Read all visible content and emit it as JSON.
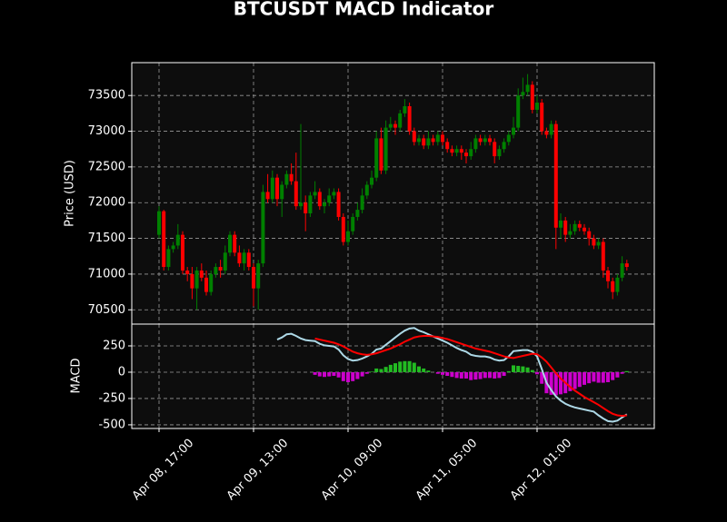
{
  "chart_data": [
    {
      "type": "candlestick",
      "title": "BTCUSDT MACD Indicator",
      "ylabel": "Price (USD)",
      "x": [
        "Apr 08, 17:00",
        "Apr 08, 18:00",
        "Apr 08, 19:00",
        "Apr 08, 20:00",
        "Apr 08, 21:00",
        "Apr 08, 22:00",
        "Apr 08, 23:00",
        "Apr 09, 00:00",
        "Apr 09, 01:00",
        "Apr 09, 02:00",
        "Apr 09, 03:00",
        "Apr 09, 04:00",
        "Apr 09, 05:00",
        "Apr 09, 06:00",
        "Apr 09, 07:00",
        "Apr 09, 08:00",
        "Apr 09, 09:00",
        "Apr 09, 10:00",
        "Apr 09, 11:00",
        "Apr 09, 12:00",
        "Apr 09, 13:00",
        "Apr 09, 14:00",
        "Apr 09, 15:00",
        "Apr 09, 16:00",
        "Apr 09, 17:00",
        "Apr 09, 18:00",
        "Apr 09, 19:00",
        "Apr 09, 20:00",
        "Apr 09, 21:00",
        "Apr 09, 22:00",
        "Apr 09, 23:00",
        "Apr 10, 00:00",
        "Apr 10, 01:00",
        "Apr 10, 02:00",
        "Apr 10, 03:00",
        "Apr 10, 04:00",
        "Apr 10, 05:00",
        "Apr 10, 06:00",
        "Apr 10, 07:00",
        "Apr 10, 08:00",
        "Apr 10, 09:00",
        "Apr 10, 10:00",
        "Apr 10, 11:00",
        "Apr 10, 12:00",
        "Apr 10, 13:00",
        "Apr 10, 14:00",
        "Apr 10, 15:00",
        "Apr 10, 16:00",
        "Apr 10, 17:00",
        "Apr 10, 18:00",
        "Apr 10, 19:00",
        "Apr 10, 20:00",
        "Apr 10, 21:00",
        "Apr 10, 22:00",
        "Apr 10, 23:00",
        "Apr 11, 00:00",
        "Apr 11, 01:00",
        "Apr 11, 02:00",
        "Apr 11, 03:00",
        "Apr 11, 04:00",
        "Apr 11, 05:00",
        "Apr 11, 06:00",
        "Apr 11, 07:00",
        "Apr 11, 08:00",
        "Apr 11, 09:00",
        "Apr 11, 10:00",
        "Apr 11, 11:00",
        "Apr 11, 12:00",
        "Apr 11, 13:00",
        "Apr 11, 14:00",
        "Apr 11, 15:00",
        "Apr 11, 16:00",
        "Apr 11, 17:00",
        "Apr 11, 18:00",
        "Apr 11, 19:00",
        "Apr 11, 20:00",
        "Apr 11, 21:00",
        "Apr 11, 22:00",
        "Apr 11, 23:00",
        "Apr 12, 00:00",
        "Apr 12, 01:00",
        "Apr 12, 02:00",
        "Apr 12, 03:00",
        "Apr 12, 04:00",
        "Apr 12, 05:00",
        "Apr 12, 06:00",
        "Apr 12, 07:00",
        "Apr 12, 08:00",
        "Apr 12, 09:00",
        "Apr 12, 10:00",
        "Apr 12, 11:00",
        "Apr 12, 12:00",
        "Apr 12, 13:00",
        "Apr 12, 14:00",
        "Apr 12, 15:00",
        "Apr 12, 16:00",
        "Apr 12, 17:00",
        "Apr 12, 18:00",
        "Apr 12, 19:00",
        "Apr 12, 20:00"
      ],
      "open": [
        71550,
        71880,
        71100,
        71350,
        71400,
        71550,
        71050,
        71000,
        70800,
        71050,
        70950,
        70750,
        71000,
        71100,
        71050,
        71300,
        71550,
        71300,
        71150,
        71300,
        71100,
        70800,
        71150,
        72150,
        72050,
        72350,
        72050,
        72250,
        72400,
        72300,
        71950,
        72000,
        71850,
        72100,
        72150,
        71950,
        72000,
        72100,
        72150,
        71800,
        71450,
        71600,
        71800,
        71900,
        72100,
        72250,
        72350,
        72900,
        72450,
        73050,
        73100,
        73050,
        73250,
        73350,
        73000,
        72850,
        72900,
        72800,
        72900,
        72850,
        72950,
        72850,
        72750,
        72700,
        72750,
        72700,
        72650,
        72750,
        72900,
        72850,
        72900,
        72850,
        72650,
        72750,
        72850,
        72950,
        73050,
        73500,
        73550,
        73650,
        73300,
        73400,
        73000,
        72950,
        73100,
        71650,
        71750,
        71550,
        71600,
        71700,
        71650,
        71600,
        71500,
        71400,
        71450,
        71050,
        70900,
        70750,
        70950,
        71150
      ],
      "high": [
        71950,
        71900,
        71400,
        71450,
        71700,
        71600,
        71100,
        71100,
        71100,
        71150,
        71050,
        71050,
        71150,
        71200,
        71400,
        71600,
        71600,
        71400,
        71350,
        71350,
        71150,
        71200,
        72250,
        72400,
        72450,
        72400,
        72300,
        72450,
        72550,
        72700,
        73100,
        72100,
        72150,
        72300,
        72200,
        72050,
        72200,
        72200,
        72200,
        71850,
        71750,
        71850,
        72000,
        72200,
        72300,
        72450,
        73000,
        73050,
        73150,
        73200,
        73150,
        73300,
        73450,
        73400,
        73050,
        72950,
        72950,
        73000,
        72950,
        73000,
        73000,
        72900,
        72800,
        72800,
        72800,
        72750,
        72850,
        72950,
        72950,
        72950,
        72950,
        72900,
        72800,
        72900,
        73000,
        73200,
        73600,
        73750,
        73800,
        73700,
        73500,
        73450,
        73050,
        73150,
        73150,
        71850,
        71800,
        71700,
        71750,
        71750,
        71700,
        71650,
        71550,
        71500,
        71500,
        71100,
        70950,
        71000,
        71250,
        71200
      ],
      "low": [
        71500,
        71050,
        71050,
        71300,
        71350,
        71000,
        70900,
        70650,
        70500,
        70900,
        70700,
        70700,
        70950,
        70950,
        71000,
        71250,
        71250,
        71100,
        71050,
        71050,
        70550,
        70500,
        71100,
        72000,
        72000,
        71950,
        71800,
        72200,
        72250,
        71900,
        71900,
        71600,
        71800,
        72050,
        71900,
        71850,
        71950,
        72050,
        71750,
        71400,
        71400,
        71550,
        71750,
        71850,
        72050,
        72200,
        72300,
        72400,
        72400,
        73000,
        72950,
        73000,
        73200,
        72950,
        72800,
        72800,
        72750,
        72750,
        72800,
        72800,
        72800,
        72700,
        72650,
        72650,
        72600,
        72550,
        72600,
        72700,
        72800,
        72800,
        72800,
        72550,
        72600,
        72700,
        72800,
        72900,
        73000,
        73450,
        73500,
        73250,
        73250,
        72950,
        72900,
        72900,
        71350,
        71500,
        71450,
        71500,
        71550,
        71600,
        71550,
        71400,
        71350,
        71350,
        70950,
        70800,
        70650,
        70700,
        70900,
        71050
      ],
      "close": [
        71880,
        71100,
        71350,
        71400,
        71550,
        71050,
        71000,
        70800,
        71050,
        70950,
        70750,
        71000,
        71100,
        71050,
        71300,
        71550,
        71300,
        71150,
        71300,
        71100,
        70800,
        71150,
        72150,
        72050,
        72350,
        72050,
        72250,
        72400,
        72300,
        71950,
        72000,
        71850,
        72100,
        72150,
        71950,
        72000,
        72100,
        72150,
        71800,
        71450,
        71600,
        71800,
        71900,
        72100,
        72250,
        72350,
        72900,
        72450,
        73050,
        73100,
        73050,
        73250,
        73350,
        73000,
        72850,
        72900,
        72800,
        72900,
        72850,
        72950,
        72850,
        72750,
        72700,
        72750,
        72700,
        72650,
        72750,
        72900,
        72850,
        72900,
        72850,
        72650,
        72750,
        72850,
        72950,
        73050,
        73500,
        73550,
        73650,
        73300,
        73400,
        73000,
        72950,
        73100,
        71650,
        71750,
        71550,
        71600,
        71700,
        71650,
        71600,
        71500,
        71400,
        71450,
        71050,
        70900,
        70750,
        70950,
        71150,
        71100
      ],
      "up_color": "#008000",
      "down_color": "#ff0000",
      "ylim": [
        70300,
        73960
      ],
      "yticks": [
        70500,
        71000,
        71500,
        72000,
        72500,
        73000,
        73500
      ],
      "xticks": [
        "Apr 08, 17:00",
        "Apr 09, 13:00",
        "Apr 10, 09:00",
        "Apr 11, 05:00",
        "Apr 12, 01:00"
      ],
      "grid": true
    },
    {
      "type": "macd",
      "ylabel": "MACD",
      "series": [
        {
          "color": "#add8e6",
          "values": [
            null,
            null,
            null,
            null,
            null,
            null,
            null,
            null,
            null,
            null,
            null,
            null,
            null,
            null,
            null,
            null,
            null,
            null,
            null,
            null,
            null,
            null,
            null,
            null,
            null,
            310,
            330,
            360,
            365,
            345,
            320,
            305,
            300,
            295,
            270,
            255,
            250,
            245,
            215,
            160,
            125,
            110,
            115,
            130,
            150,
            175,
            215,
            225,
            260,
            295,
            330,
            365,
            395,
            415,
            420,
            395,
            380,
            360,
            340,
            320,
            300,
            280,
            255,
            230,
            210,
            195,
            165,
            155,
            150,
            150,
            140,
            120,
            110,
            115,
            150,
            200,
            205,
            210,
            210,
            195,
            150,
            30,
            -100,
            -170,
            -230,
            -270,
            -300,
            -320,
            -335,
            -345,
            -355,
            -365,
            -375,
            -410,
            -440,
            -465,
            -470,
            -460,
            -430,
            -400
          ]
        },
        {
          "color": "#ff0000",
          "values": [
            null,
            null,
            null,
            null,
            null,
            null,
            null,
            null,
            null,
            null,
            null,
            null,
            null,
            null,
            null,
            null,
            null,
            null,
            null,
            null,
            null,
            null,
            null,
            null,
            null,
            null,
            null,
            null,
            null,
            null,
            null,
            null,
            null,
            320,
            310,
            300,
            290,
            280,
            265,
            245,
            220,
            195,
            180,
            170,
            165,
            170,
            180,
            195,
            210,
            225,
            245,
            265,
            290,
            310,
            330,
            340,
            345,
            345,
            340,
            335,
            325,
            315,
            300,
            285,
            270,
            255,
            240,
            225,
            215,
            205,
            195,
            180,
            165,
            150,
            140,
            135,
            145,
            155,
            165,
            175,
            170,
            140,
            100,
            45,
            -10,
            -60,
            -100,
            -140,
            -175,
            -205,
            -235,
            -260,
            -285,
            -310,
            -340,
            -370,
            -395,
            -410,
            -415,
            -410
          ]
        }
      ],
      "histogram": {
        "up_color": "#22bb22",
        "down_color": "#cc00cc",
        "values": [
          null,
          null,
          null,
          null,
          null,
          null,
          null,
          null,
          null,
          null,
          null,
          null,
          null,
          null,
          null,
          null,
          null,
          null,
          null,
          null,
          null,
          null,
          null,
          null,
          null,
          null,
          null,
          null,
          null,
          null,
          null,
          null,
          null,
          -25,
          -40,
          -45,
          -40,
          -35,
          -50,
          -85,
          -95,
          -85,
          -65,
          -40,
          -15,
          5,
          35,
          30,
          50,
          70,
          85,
          100,
          105,
          105,
          90,
          55,
          35,
          15,
          0,
          -15,
          -25,
          -35,
          -45,
          -55,
          -60,
          -60,
          -75,
          -70,
          -65,
          -55,
          -55,
          -60,
          -55,
          -35,
          10,
          65,
          60,
          55,
          45,
          20,
          -20,
          -110,
          -200,
          -215,
          -220,
          -210,
          -200,
          -180,
          -160,
          -140,
          -120,
          -105,
          -90,
          -100,
          -100,
          -95,
          -75,
          -50,
          -15,
          10
        ]
      },
      "ylim": [
        -535,
        457
      ],
      "yticks": [
        -500,
        -250,
        0,
        250
      ],
      "grid": true
    }
  ]
}
